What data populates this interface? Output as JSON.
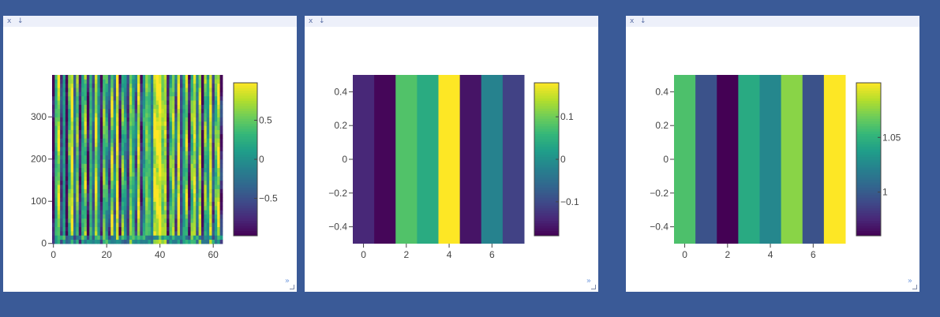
{
  "panels": [
    {
      "close": "x",
      "download": "↓",
      "expand": "»"
    },
    {
      "close": "x",
      "download": "↓",
      "expand": "»"
    },
    {
      "close": "x",
      "download": "↓",
      "expand": "»"
    }
  ],
  "chart_data": [
    {
      "type": "heatmap",
      "colorscale": "viridis",
      "xlim": [
        -0.5,
        63.5
      ],
      "ylim": [
        -0.5,
        399.5
      ],
      "x_ticks": [
        0,
        20,
        40,
        60
      ],
      "x_tick_labels": [
        "0",
        "20",
        "40",
        "60"
      ],
      "y_ticks": [
        0,
        100,
        200,
        300
      ],
      "y_tick_labels": [
        "0",
        "100",
        "200",
        "300"
      ],
      "zlim": [
        -0.98,
        0.98
      ],
      "colorbar_ticks": [
        -0.5,
        0,
        0.5
      ],
      "colorbar_tick_labels": [
        "−0.5",
        "0",
        "0.5"
      ],
      "column_values": [
        -0.95,
        0.3,
        0.75,
        -0.6,
        0.1,
        -0.92,
        0.4,
        0.85,
        -0.3,
        0.55,
        -0.8,
        0.2,
        0.6,
        -0.95,
        0.35,
        -0.4,
        0.8,
        0.0,
        -0.85,
        0.5,
        0.15,
        -0.5,
        0.7,
        -0.2,
        0.9,
        -0.9,
        0.45,
        0.05,
        -0.65,
        0.6,
        0.25,
        -0.35,
        0.8,
        -0.7,
        0.1,
        0.55,
        0.35,
        -0.15,
        0.85,
        0.9,
        0.95,
        0.6,
        0.75,
        -0.85,
        0.3,
        0.7,
        -0.4,
        0.9,
        -0.55,
        0.2,
        0.65,
        -0.9,
        0.45,
        0.8,
        -0.25,
        0.7,
        -0.95,
        0.5,
        0.05,
        0.85,
        -0.5,
        0.4,
        0.8,
        -0.7
      ],
      "note_values": "column values estimated from rendered color bands"
    },
    {
      "type": "heatmap",
      "colorscale": "viridis",
      "x": [
        0,
        1,
        2,
        3,
        4,
        5,
        6,
        7
      ],
      "values": [
        -0.14,
        -0.175,
        0.08,
        0.04,
        0.18,
        -0.16,
        -0.02,
        -0.11
      ],
      "xlim": [
        -0.5,
        7.5
      ],
      "ylim": [
        -0.5,
        0.5
      ],
      "x_ticks": [
        0,
        2,
        4,
        6
      ],
      "x_tick_labels": [
        "0",
        "2",
        "4",
        "6"
      ],
      "y_ticks": [
        -0.4,
        -0.2,
        0,
        0.2,
        0.4
      ],
      "y_tick_labels": [
        "−0.4",
        "−0.2",
        "0",
        "0.2",
        "0.4"
      ],
      "zlim": [
        -0.18,
        0.18
      ],
      "colorbar_ticks": [
        -0.1,
        0,
        0.1
      ],
      "colorbar_tick_labels": [
        "−0.1",
        "0",
        "0.1"
      ]
    },
    {
      "type": "heatmap",
      "colorscale": "viridis",
      "x": [
        0,
        1,
        2,
        3,
        4,
        5,
        6,
        7
      ],
      "values": [
        1.06,
        0.995,
        0.96,
        1.045,
        1.025,
        1.075,
        0.995,
        1.1
      ],
      "xlim": [
        -0.5,
        7.5
      ],
      "ylim": [
        -0.5,
        0.5
      ],
      "x_ticks": [
        0,
        2,
        4,
        6
      ],
      "x_tick_labels": [
        "0",
        "2",
        "4",
        "6"
      ],
      "y_ticks": [
        -0.4,
        -0.2,
        0,
        0.2,
        0.4
      ],
      "y_tick_labels": [
        "−0.4",
        "−0.2",
        "0",
        "0.2",
        "0.4"
      ],
      "zlim": [
        0.96,
        1.1
      ],
      "colorbar_ticks": [
        1.0,
        1.05
      ],
      "colorbar_tick_labels": [
        "1",
        "1.05"
      ]
    }
  ]
}
